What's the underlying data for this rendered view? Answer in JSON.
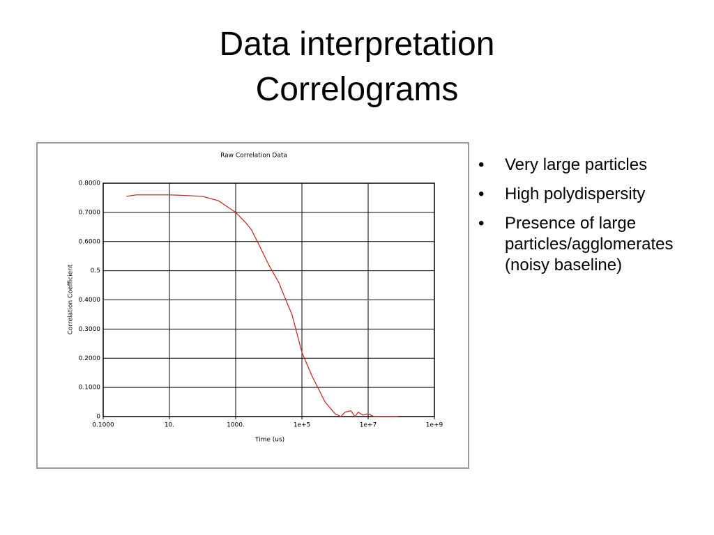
{
  "slide": {
    "title": [
      "Data interpretation",
      "Correlograms"
    ],
    "bullets": [
      "Very large particles",
      "High polydispersity",
      "Presence of large particles/agglomerates (noisy baseline)"
    ]
  },
  "chart_data": {
    "type": "line",
    "title": "Raw Correlation Data",
    "x_label": "Time (us)",
    "y_label": "Correlation Coefficient",
    "xscale": "log",
    "grid": true,
    "xlim": [
      0.1,
      1000000000
    ],
    "xticks": [
      {
        "value": 0.1,
        "label": "0.1000"
      },
      {
        "value": 10,
        "label": "10."
      },
      {
        "value": 1000,
        "label": "1000."
      },
      {
        "value": 100000,
        "label": "1e+5"
      },
      {
        "value": 10000000,
        "label": "1e+7"
      },
      {
        "value": 1000000000,
        "label": "1e+9"
      }
    ],
    "ylim": [
      0,
      0.8
    ],
    "yticks": [
      0,
      {
        "value": 0.1,
        "label": "0.1000"
      },
      {
        "value": 0.2,
        "label": "0.2000"
      },
      {
        "value": 0.3,
        "label": "0.3000"
      },
      {
        "value": 0.4,
        "label": "0.4000"
      },
      0.5,
      {
        "value": 0.6,
        "label": "0.6000"
      },
      {
        "value": 0.7,
        "label": "0.7000"
      },
      {
        "value": 0.8,
        "label": "0.8000"
      }
    ],
    "x": [
      0.5,
      1,
      3,
      10,
      30,
      100,
      300,
      1000,
      2000,
      3000,
      5000,
      10000,
      20000,
      30000,
      50000,
      100000,
      200000,
      300000,
      500000,
      1000000,
      1500000,
      2000000,
      3000000,
      4000000,
      5000000,
      7000000,
      10000000,
      15000000,
      30000000,
      80000000
    ],
    "series": [
      {
        "color": "#c0302a",
        "values": [
          0.755,
          0.76,
          0.76,
          0.76,
          0.758,
          0.755,
          0.74,
          0.7,
          0.665,
          0.64,
          0.59,
          0.52,
          0.46,
          0.41,
          0.35,
          0.22,
          0.14,
          0.1,
          0.05,
          0.01,
          0.0,
          0.015,
          0.02,
          0.0,
          0.015,
          0.005,
          0.01,
          0.0,
          0.0,
          0.0
        ]
      }
    ]
  }
}
